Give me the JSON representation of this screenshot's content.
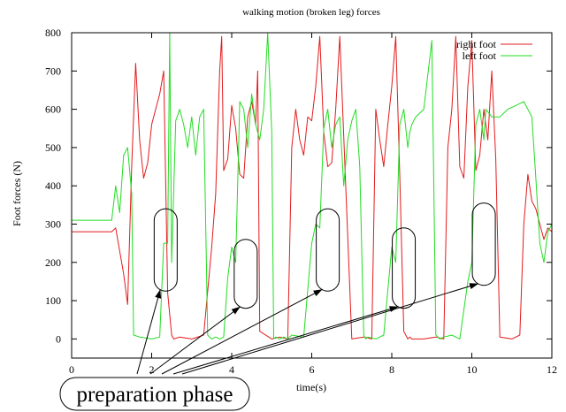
{
  "chart_data": {
    "type": "line",
    "title": "walking motion (broken leg) forces",
    "xlabel": "time(s)",
    "ylabel": "Foot forces (N)",
    "xlim": [
      0,
      12
    ],
    "ylim": [
      -50,
      800
    ],
    "xticks": [
      0,
      2,
      4,
      6,
      8,
      10,
      12
    ],
    "yticks": [
      0,
      100,
      200,
      300,
      400,
      500,
      600,
      700,
      800
    ],
    "grid": false,
    "legend_position": "top-right",
    "series": [
      {
        "name": "right foot",
        "color": "#e31a1c",
        "x": [
          0.0,
          1.0,
          1.1,
          1.2,
          1.3,
          1.4,
          1.5,
          1.6,
          1.7,
          1.8,
          1.9,
          2.0,
          2.1,
          2.2,
          2.3,
          2.4,
          2.5,
          2.55,
          2.7,
          3.0,
          3.3,
          3.5,
          3.6,
          3.7,
          3.75,
          3.8,
          3.9,
          4.0,
          4.1,
          4.2,
          4.3,
          4.4,
          4.5,
          4.6,
          4.65,
          4.7,
          5.0,
          5.2,
          5.4,
          5.5,
          5.6,
          5.7,
          5.8,
          5.9,
          6.0,
          6.1,
          6.2,
          6.3,
          6.4,
          6.5,
          6.6,
          6.7,
          7.0,
          7.3,
          7.5,
          7.6,
          7.7,
          7.8,
          7.9,
          8.0,
          8.1,
          8.2,
          8.3,
          8.4,
          8.45,
          8.5,
          8.8,
          9.1,
          9.3,
          9.4,
          9.5,
          9.6,
          9.7,
          9.8,
          9.9,
          10.0,
          10.1,
          10.2,
          10.3,
          10.4,
          10.5,
          10.6,
          10.7,
          11.0,
          11.2,
          11.3,
          11.4,
          11.5,
          11.6,
          11.7,
          11.8,
          11.9,
          12.0
        ],
        "y": [
          280,
          280,
          290,
          230,
          170,
          90,
          450,
          720,
          520,
          420,
          460,
          560,
          600,
          640,
          700,
          120,
          10,
          0,
          5,
          0,
          10,
          240,
          380,
          700,
          790,
          440,
          470,
          610,
          550,
          430,
          420,
          580,
          620,
          560,
          700,
          20,
          0,
          5,
          0,
          500,
          600,
          520,
          480,
          580,
          570,
          660,
          790,
          540,
          450,
          460,
          600,
          790,
          0,
          5,
          0,
          600,
          520,
          450,
          560,
          660,
          790,
          430,
          20,
          0,
          5,
          0,
          0,
          5,
          0,
          500,
          600,
          790,
          450,
          420,
          660,
          780,
          440,
          480,
          600,
          520,
          700,
          470,
          5,
          0,
          10,
          300,
          430,
          360,
          340,
          300,
          260,
          290,
          280
        ]
      },
      {
        "name": "left foot",
        "color": "#22dd22",
        "x": [
          0.0,
          1.0,
          1.1,
          1.2,
          1.3,
          1.4,
          1.5,
          1.55,
          1.7,
          2.0,
          2.2,
          2.3,
          2.4,
          2.45,
          2.5,
          2.6,
          2.7,
          2.8,
          2.9,
          3.0,
          3.1,
          3.2,
          3.3,
          3.4,
          3.5,
          3.6,
          3.7,
          3.8,
          3.9,
          4.0,
          4.1,
          4.2,
          4.3,
          4.4,
          4.5,
          4.6,
          4.7,
          4.8,
          4.9,
          5.0,
          5.05,
          5.1,
          5.2,
          5.3,
          5.4,
          5.5,
          5.8,
          6.0,
          6.1,
          6.2,
          6.3,
          6.4,
          6.5,
          6.6,
          6.7,
          6.8,
          6.9,
          7.0,
          7.1,
          7.2,
          7.3,
          7.35,
          7.4,
          7.6,
          7.8,
          8.0,
          8.1,
          8.2,
          8.3,
          8.4,
          8.45,
          8.5,
          8.6,
          8.8,
          9.0,
          9.1,
          9.2,
          9.3,
          9.5,
          9.7,
          9.9,
          10.0,
          10.1,
          10.2,
          10.3,
          10.35,
          10.5,
          10.7,
          10.9,
          11.1,
          11.3,
          11.5,
          11.6,
          11.7,
          11.8,
          11.9,
          12.0
        ],
        "y": [
          310,
          310,
          400,
          330,
          480,
          500,
          380,
          10,
          5,
          0,
          5,
          250,
          250,
          800,
          200,
          570,
          600,
          560,
          500,
          580,
          480,
          580,
          600,
          10,
          0,
          5,
          0,
          5,
          160,
          240,
          200,
          620,
          600,
          500,
          640,
          560,
          520,
          600,
          800,
          540,
          0,
          5,
          0,
          5,
          0,
          10,
          5,
          250,
          300,
          290,
          550,
          600,
          500,
          560,
          580,
          400,
          520,
          570,
          600,
          450,
          10,
          0,
          5,
          0,
          10,
          240,
          200,
          560,
          600,
          500,
          540,
          560,
          580,
          600,
          780,
          10,
          0,
          5,
          10,
          0,
          150,
          200,
          560,
          600,
          520,
          600,
          580,
          580,
          600,
          610,
          620,
          580,
          420,
          250,
          200,
          280,
          300
        ]
      }
    ],
    "annotations": [
      {
        "label": "preparation phase",
        "x": [
          2.35,
          4.35,
          6.4,
          8.3,
          10.3
        ],
        "y_range": [
          [
            125,
            340
          ],
          [
            80,
            260
          ],
          [
            125,
            340
          ],
          [
            80,
            290
          ],
          [
            140,
            355
          ]
        ]
      }
    ]
  },
  "icons": {
    "box_shape": "rounded-rectangle",
    "arrow_shape": "arrow-head"
  }
}
